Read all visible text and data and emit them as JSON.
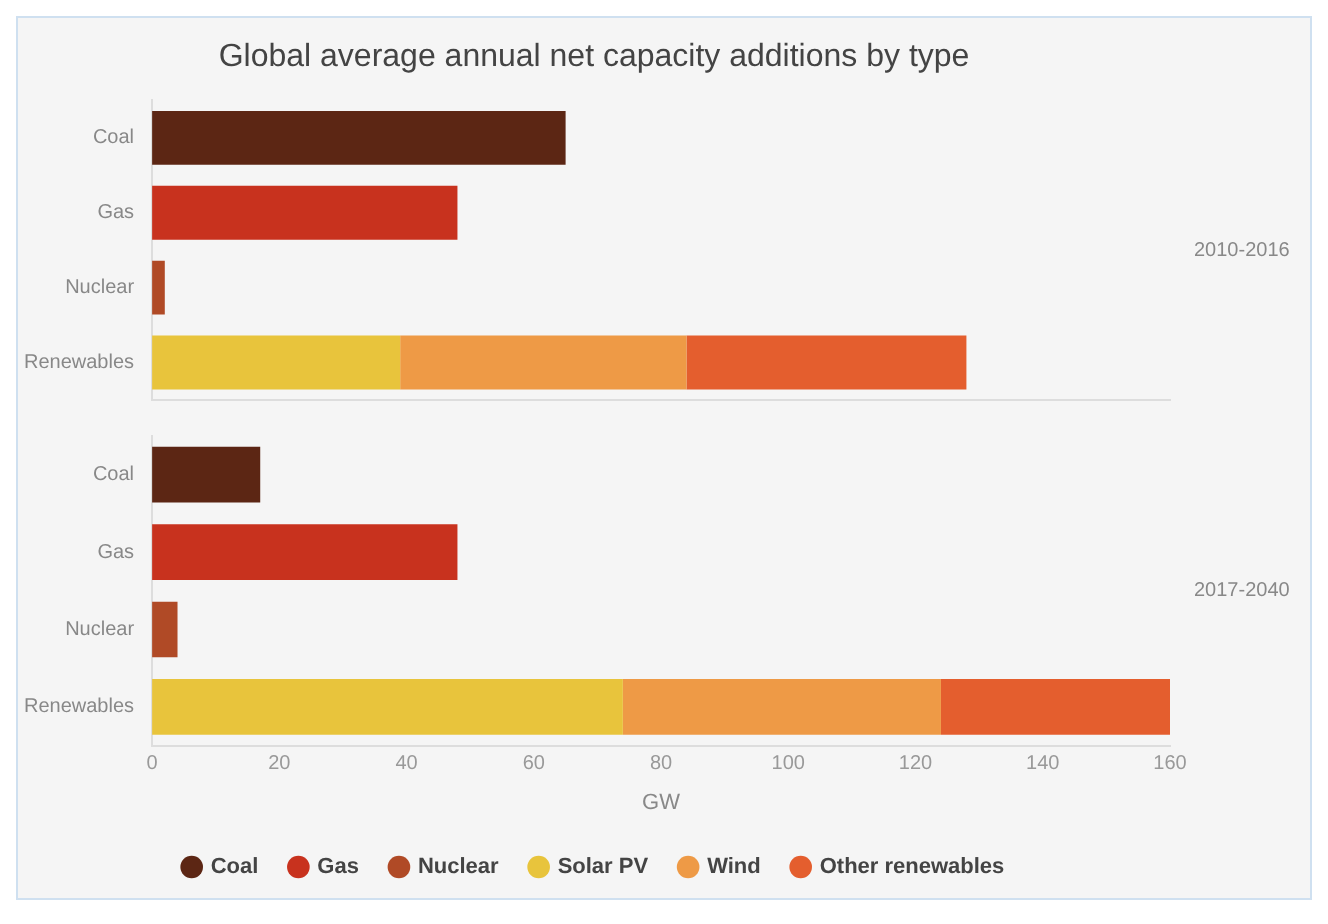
{
  "chart_data": [
    {
      "type": "bar",
      "title": "Global average annual net capacity additions by type",
      "orientation": "horizontal",
      "stacked": true,
      "categories": [
        "Coal",
        "Gas",
        "Nuclear",
        "Renewables"
      ],
      "xlim": [
        0,
        160
      ],
      "xticks": [
        0,
        20,
        40,
        60,
        80,
        100,
        120,
        140,
        160
      ],
      "tick_labels": "y",
      "grid": false,
      "legend": false,
      "annotations": [
        "2010-2016"
      ],
      "series": [
        {
          "color": "#5c2614",
          "values": [
            65,
            null,
            null,
            null
          ]
        },
        {
          "color": "#c8321e",
          "values": [
            null,
            48,
            null,
            null
          ]
        },
        {
          "color": "#b04a26",
          "values": [
            null,
            null,
            2,
            null
          ]
        },
        {
          "color": "#e8c43c",
          "values": [
            null,
            null,
            null,
            39
          ]
        },
        {
          "color": "#ee9a46",
          "values": [
            null,
            null,
            null,
            45
          ]
        },
        {
          "color": "#e45e2e",
          "values": [
            null,
            null,
            null,
            44
          ]
        }
      ]
    },
    {
      "type": "bar",
      "orientation": "horizontal",
      "stacked": true,
      "categories": [
        "Coal",
        "Gas",
        "Nuclear",
        "Renewables"
      ],
      "xlim": [
        0,
        160
      ],
      "xticks": [
        0,
        20,
        40,
        60,
        80,
        100,
        120,
        140,
        160
      ],
      "xlabel": "GW",
      "grid": false,
      "legend": "bottom",
      "annotations": [
        "2017-2040"
      ],
      "series": [
        {
          "name": "Coal",
          "color": "#5c2614",
          "values": [
            17,
            null,
            null,
            null
          ]
        },
        {
          "name": "Gas",
          "color": "#c8321e",
          "values": [
            null,
            48,
            null,
            null
          ]
        },
        {
          "name": "Nuclear",
          "color": "#b04a26",
          "values": [
            null,
            null,
            4,
            null
          ]
        },
        {
          "name": "Solar PV",
          "color": "#e8c43c",
          "values": [
            null,
            null,
            null,
            74
          ]
        },
        {
          "name": "Wind",
          "color": "#ee9a46",
          "values": [
            null,
            null,
            null,
            50
          ]
        },
        {
          "name": "Other renewables",
          "color": "#e45e2e",
          "values": [
            null,
            null,
            null,
            36
          ]
        }
      ]
    }
  ]
}
